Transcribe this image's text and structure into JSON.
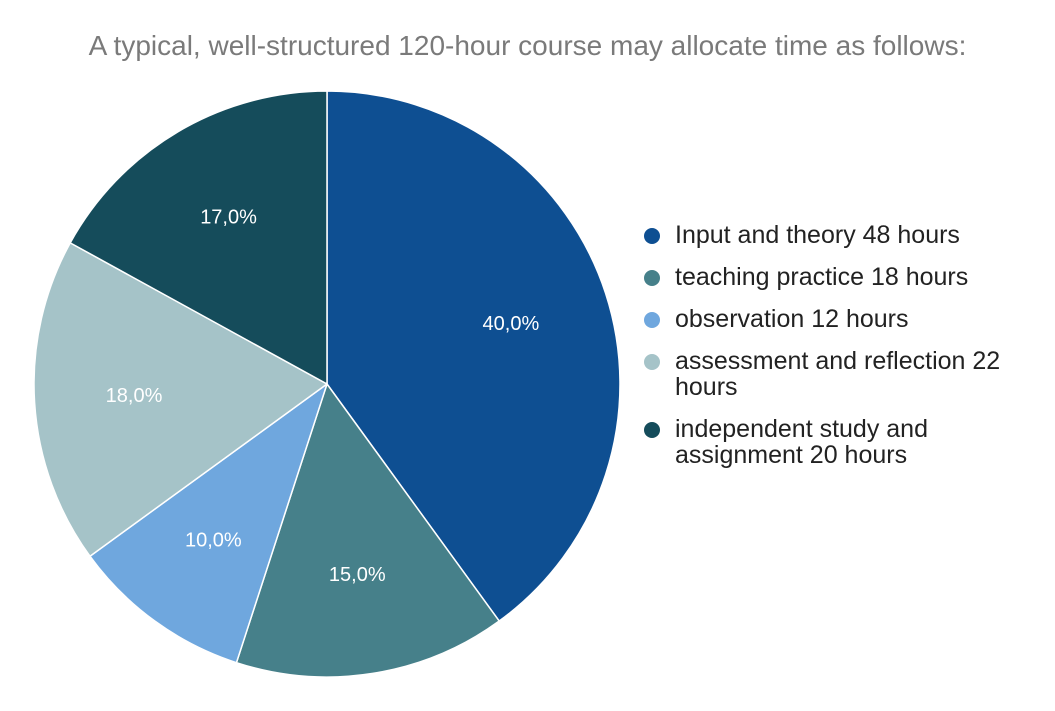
{
  "chart_data": {
    "type": "pie",
    "title": "A typical, well-structured 120-hour course may allocate time as follows:",
    "slices": [
      {
        "label": "Input and theory 48 hours",
        "value": 40.0,
        "display": "40,0%",
        "color": "#0E4F92"
      },
      {
        "label": "teaching practice 18 hours",
        "value": 15.0,
        "display": "15,0%",
        "color": "#46808A"
      },
      {
        "label": "observation 12 hours",
        "value": 10.0,
        "display": "10,0%",
        "color": "#6FA7DE"
      },
      {
        "label": "assessment and reflection 22 hours",
        "value": 18.0,
        "display": "18,0%",
        "color": "#A5C3C8"
      },
      {
        "label": "independent study and assignment 20 hours",
        "value": 17.0,
        "display": "17,0%",
        "color": "#154C5B"
      }
    ],
    "legend_position": "right"
  }
}
